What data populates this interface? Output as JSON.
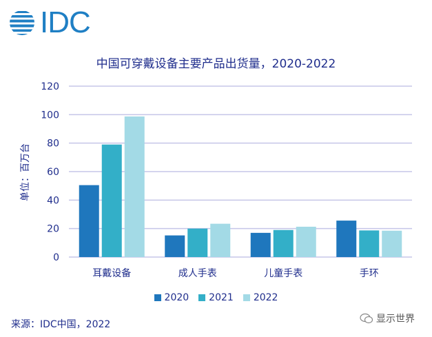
{
  "logo": {
    "text": "IDC"
  },
  "source": "来源：IDC中国，2022",
  "watermark": "显示世界",
  "colors": {
    "2020": "#1f77bd",
    "2021": "#33afc8",
    "2022": "#a3dae6",
    "grid": "#c5c5e8",
    "text": "#1f2d8c"
  },
  "chart_data": {
    "type": "bar",
    "title": "中国可穿戴设备主要产品出货量，2020-2022",
    "ylabel": "单位：百万台",
    "xlabel": "",
    "ylim": [
      0,
      120
    ],
    "yticks": [
      0,
      20,
      40,
      60,
      80,
      100,
      120
    ],
    "grid": true,
    "legend": "bottom",
    "categories": [
      "耳戴设备",
      "成人手表",
      "儿童手表",
      "手环"
    ],
    "series": [
      {
        "name": "2020",
        "values": [
          50.5,
          15.2,
          17.0,
          25.6
        ]
      },
      {
        "name": "2021",
        "values": [
          79.0,
          20.0,
          19.0,
          18.7
        ]
      },
      {
        "name": "2022",
        "values": [
          98.7,
          23.4,
          21.3,
          18.5
        ]
      }
    ]
  }
}
